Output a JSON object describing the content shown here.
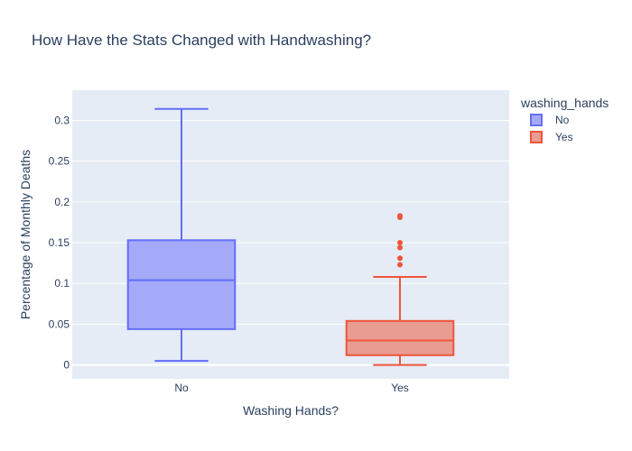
{
  "chart_data": {
    "type": "box",
    "title": "How Have the Stats Changed with Handwashing?",
    "xlabel": "Washing Hands?",
    "ylabel": "Percentage of Monthly Deaths",
    "categories": [
      "No",
      "Yes"
    ],
    "ylim": [
      -0.017,
      0.337
    ],
    "yticks": [
      0,
      0.05,
      0.1,
      0.15,
      0.2,
      0.25,
      0.3
    ],
    "ytick_labels": [
      "0",
      "0.05",
      "0.1",
      "0.15",
      "0.2",
      "0.25",
      "0.3"
    ],
    "grid": true,
    "legend_title": "washing_hands",
    "legend_position": "top-right",
    "series": [
      {
        "name": "No",
        "color": "#636efa",
        "fill": "#a5aaf8",
        "category": "No",
        "min": 0.005,
        "q1": 0.044,
        "median": 0.104,
        "q3": 0.153,
        "max": 0.314,
        "outliers": []
      },
      {
        "name": "Yes",
        "color": "#ef553b",
        "fill": "#e99c92",
        "category": "Yes",
        "min": 0.0,
        "q1": 0.012,
        "median": 0.03,
        "q3": 0.054,
        "max": 0.108,
        "outliers": [
          0.123,
          0.131,
          0.144,
          0.15,
          0.181,
          0.183
        ]
      }
    ]
  }
}
